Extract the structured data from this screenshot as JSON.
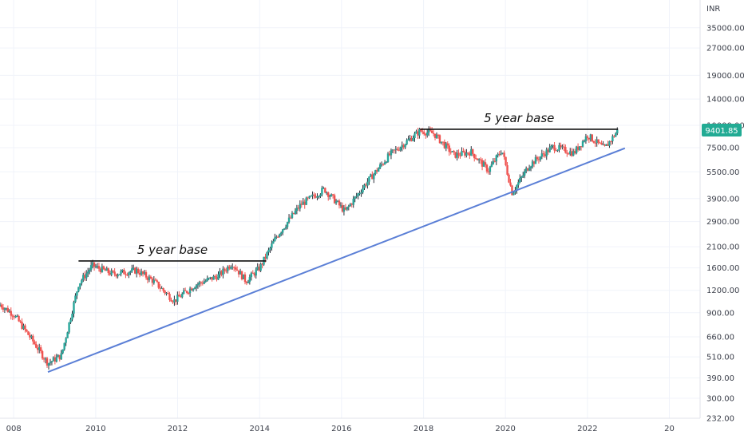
{
  "chart_data": {
    "type": "candlestick",
    "currency_label": "INR",
    "y_scale": "log",
    "y_range": [
      232,
      50000
    ],
    "x_range": [
      "2007-09-01",
      "2024-10-01"
    ],
    "y_ticks": [
      "35000.00",
      "27000.00",
      "19000.00",
      "14000.00",
      "10000.00",
      "7500.00",
      "5500.00",
      "3900.00",
      "2900.00",
      "2100.00",
      "1600.00",
      "1200.00",
      "900.00",
      "660.00",
      "510.00",
      "390.00",
      "300.00",
      "232.00"
    ],
    "x_ticks": [
      {
        "label": "008",
        "date": "2008-01-01"
      },
      {
        "label": "2010",
        "date": "2010-01-01"
      },
      {
        "label": "2012",
        "date": "2012-01-01"
      },
      {
        "label": "2014",
        "date": "2014-01-01"
      },
      {
        "label": "2016",
        "date": "2016-01-01"
      },
      {
        "label": "2018",
        "date": "2018-01-01"
      },
      {
        "label": "2020",
        "date": "2020-01-01"
      },
      {
        "label": "2022",
        "date": "2022-01-01"
      },
      {
        "label": "20",
        "date": "2024-01-01"
      }
    ],
    "last_price": {
      "label": "9401.85",
      "value": 9401.85,
      "color": "#22ab94"
    },
    "colors": {
      "up": "#26a69a",
      "down": "#ef5350",
      "candle_body": "#2a2e39",
      "trendline": "#5b7fd6",
      "grid": "#f0f3fa",
      "axis": "#e0e3eb"
    },
    "price_path": [
      {
        "date": "2007-09-01",
        "close": 1000
      },
      {
        "date": "2008-01-01",
        "close": 880
      },
      {
        "date": "2008-06-01",
        "close": 650
      },
      {
        "date": "2008-11-01",
        "close": 470
      },
      {
        "date": "2009-03-01",
        "close": 520
      },
      {
        "date": "2009-08-01",
        "close": 1300
      },
      {
        "date": "2009-12-01",
        "close": 1650
      },
      {
        "date": "2010-06-01",
        "close": 1480
      },
      {
        "date": "2011-01-01",
        "close": 1550
      },
      {
        "date": "2011-06-01",
        "close": 1350
      },
      {
        "date": "2011-12-01",
        "close": 1050
      },
      {
        "date": "2012-06-01",
        "close": 1280
      },
      {
        "date": "2013-01-01",
        "close": 1450
      },
      {
        "date": "2013-05-01",
        "close": 1700
      },
      {
        "date": "2013-09-01",
        "close": 1350
      },
      {
        "date": "2014-01-01",
        "close": 1600
      },
      {
        "date": "2014-06-01",
        "close": 2400
      },
      {
        "date": "2015-01-01",
        "close": 3600
      },
      {
        "date": "2015-08-01",
        "close": 4400
      },
      {
        "date": "2016-02-01",
        "close": 3300
      },
      {
        "date": "2016-08-01",
        "close": 4700
      },
      {
        "date": "2017-03-01",
        "close": 6800
      },
      {
        "date": "2017-12-01",
        "close": 9300
      },
      {
        "date": "2018-04-01",
        "close": 9000
      },
      {
        "date": "2018-10-01",
        "close": 6800
      },
      {
        "date": "2019-03-01",
        "close": 7100
      },
      {
        "date": "2019-08-01",
        "close": 5600
      },
      {
        "date": "2019-12-01",
        "close": 7300
      },
      {
        "date": "2020-03-01",
        "close": 4200
      },
      {
        "date": "2020-08-01",
        "close": 6000
      },
      {
        "date": "2021-03-01",
        "close": 7600
      },
      {
        "date": "2021-09-01",
        "close": 7000
      },
      {
        "date": "2022-01-01",
        "close": 8800
      },
      {
        "date": "2022-06-01",
        "close": 7400
      },
      {
        "date": "2022-10-01",
        "close": 9401.85
      }
    ],
    "resistance_lines": [
      {
        "label": "5 year base",
        "value": 1750,
        "start": "2009-08-01",
        "end": "2014-03-01"
      },
      {
        "label": "5 year base",
        "value": 9500,
        "start": "2017-12-01",
        "end": "2022-10-01"
      }
    ],
    "trendline": {
      "start": {
        "date": "2008-11-01",
        "value": 420
      },
      "end": {
        "date": "2022-12-01",
        "value": 7450
      }
    }
  }
}
